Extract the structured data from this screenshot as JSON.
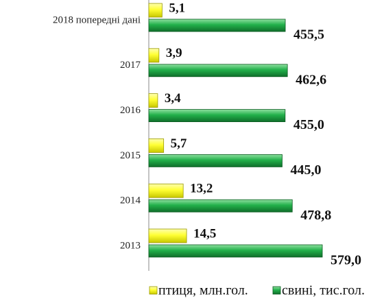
{
  "chart_data": {
    "type": "bar",
    "orientation": "horizontal",
    "categories": [
      "2018 попередні дані",
      "2017",
      "2016",
      "2015",
      "2014",
      "2013"
    ],
    "series": [
      {
        "name": "птиця, млн.гол.",
        "color": "#ffff33",
        "values": [
          5.1,
          3.9,
          3.4,
          5.7,
          13.2,
          14.5
        ],
        "value_labels": [
          "5,1",
          "3,9",
          "3,4",
          "5,7",
          "13,2",
          "14,5"
        ]
      },
      {
        "name": "свині, тис.гол.",
        "color": "#22b04a",
        "values": [
          455.5,
          462.6,
          455.0,
          445.0,
          478.8,
          579.0
        ],
        "value_labels": [
          "455,5",
          "462,6",
          "455,0",
          "445,0",
          "478,8",
          "579,0"
        ]
      }
    ],
    "legend": "bottom"
  }
}
